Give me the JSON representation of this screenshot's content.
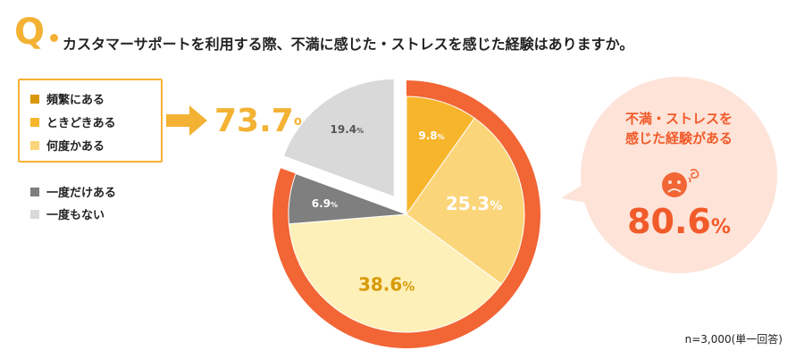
{
  "question": {
    "mark": "Q",
    "text": "カスタマーサポートを利用する際、不満に感じた・ストレスを感じた経験はありますか。"
  },
  "legend": {
    "group_items": [
      "頻繁にある",
      "ときどきある",
      "何度かある"
    ],
    "other_items": [
      "一度だけある",
      "一度もない"
    ]
  },
  "summary": {
    "value": "73.7",
    "unit": "%"
  },
  "callout": {
    "line1": "不満・ストレスを",
    "line2": "感じた経験がある",
    "value": "80.6",
    "unit": "%",
    "icon": "sad-face-icon"
  },
  "note": "n=3,000(単一回答)",
  "colors": {
    "frequent": "#f7b52c",
    "sometimes": "#fbd57a",
    "several": "#fdf0b8",
    "once": "#7f7f7f",
    "never": "#d9d9d9",
    "ring": "#f26535",
    "accent": "#f4b234",
    "callout": "#f15a29",
    "bubble": "#fde3d8"
  },
  "chart_data": {
    "type": "pie",
    "categories": [
      "頻繁にある",
      "ときどきある",
      "何度かある",
      "一度だけある",
      "一度もない"
    ],
    "values": [
      9.8,
      25.3,
      38.6,
      6.9,
      19.4
    ],
    "labels": [
      "9.8",
      "25.3",
      "38.6",
      "6.9",
      "19.4"
    ],
    "unit": "%",
    "legend_position": "left"
  }
}
